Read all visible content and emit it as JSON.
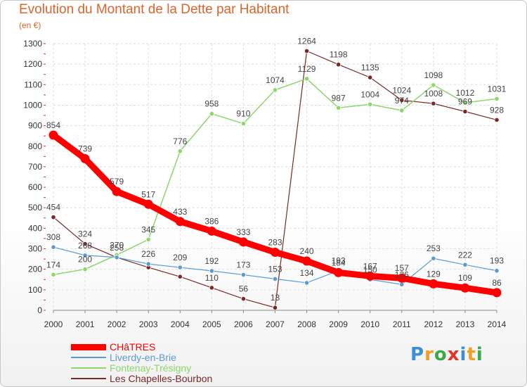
{
  "title": "Evolution du Montant de la Dette par Habitant",
  "unit": "(en €)",
  "logo": {
    "text": "Proxiti",
    "colors": [
      "#3a8fd6",
      "#f0a020",
      "#39a94a",
      "#e2342b",
      "#3a8fd6",
      "#f0a020",
      "#39a94a"
    ]
  },
  "chart_data": {
    "type": "line",
    "title": "Evolution du Montant de la Dette par Habitant",
    "ylabel": "(en €)",
    "x": [
      "2000",
      "2001",
      "2002",
      "2003",
      "2004",
      "2005",
      "2006",
      "2007",
      "2008",
      "2009",
      "2010",
      "2011",
      "2012",
      "2013",
      "2014"
    ],
    "ylim": [
      0,
      1300
    ],
    "yticks": [
      0,
      100,
      200,
      300,
      400,
      500,
      600,
      700,
      800,
      900,
      1000,
      1100,
      1200,
      1300
    ],
    "grid": true,
    "legend_position": "bottom-left",
    "series": [
      {
        "name": "Les Chapelles-Bourbon",
        "color": "#7a2828",
        "line_width": 1.2,
        "values": [
          454,
          324,
          258,
          209,
          164,
          110,
          56,
          13,
          1264,
          1198,
          1135,
          1024,
          1008,
          969,
          928
        ],
        "labels": [
          "454",
          "324",
          "",
          "",
          "",
          "110",
          "56",
          "13",
          "1264",
          "1198",
          "1135",
          "1024",
          "1008",
          "969",
          "928"
        ]
      },
      {
        "name": "Fontenay-Trésigny",
        "color": "#8cd66a",
        "line_width": 1.5,
        "values": [
          174,
          200,
          270,
          345,
          776,
          958,
          910,
          1074,
          1129,
          987,
          1004,
          974,
          1098,
          1012,
          1031
        ],
        "labels": [
          "174",
          "200",
          "270",
          "345",
          "776",
          "958",
          "910",
          "1074",
          "1129",
          "987",
          "1004",
          "974",
          "1098",
          "1012",
          "1031"
        ]
      },
      {
        "name": "Liverdy-en-Brie",
        "color": "#5b9bd0",
        "line_width": 1.2,
        "values": [
          308,
          268,
          258,
          226,
          209,
          192,
          173,
          153,
          134,
          193,
          150,
          126,
          253,
          222,
          193
        ],
        "labels": [
          "308",
          "268",
          "258",
          "226",
          "209",
          "192",
          "173",
          "153",
          "134",
          "193",
          "150",
          "126",
          "253",
          "222",
          "193"
        ]
      },
      {
        "name": "CHâTRES",
        "color": "#ff0000",
        "line_width": 9,
        "values": [
          854,
          739,
          579,
          517,
          433,
          386,
          333,
          283,
          240,
          184,
          167,
          157,
          129,
          109,
          86
        ],
        "labels": [
          "854",
          "739",
          "579",
          "517",
          "433",
          "386",
          "333",
          "283",
          "240",
          "184",
          "167",
          "157",
          "129",
          "109",
          "86"
        ]
      }
    ]
  },
  "legend": [
    {
      "name": "CHâTRES",
      "color": "#ff0000",
      "thickness": 9
    },
    {
      "name": "Liverdy-en-Brie",
      "color": "#5b9bd0",
      "thickness": 2
    },
    {
      "name": "Fontenay-Trésigny",
      "color": "#8cd66a",
      "thickness": 2
    },
    {
      "name": "Les Chapelles-Bourbon",
      "color": "#7a2828",
      "thickness": 2
    }
  ]
}
